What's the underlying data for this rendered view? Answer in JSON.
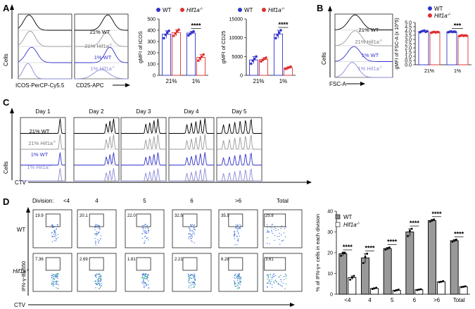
{
  "figure": {
    "panels": [
      "A",
      "B",
      "C",
      "D"
    ],
    "legend_wt": "WT",
    "legend_ko": "Hif1a",
    "legend_ko_sup": "-/-",
    "sample_21wt": "21% WT",
    "sample_21ko": "21% Hif1a",
    "sample_1wt": "1% WT",
    "sample_1ko": "1% Hif1a",
    "cells_label": "Cells",
    "colors": {
      "wt": "#3333cc",
      "ko": "#e03030",
      "ctrl": "#000000",
      "light": "#8a8ad8",
      "gray": "#999999"
    }
  },
  "panelA": {
    "axis1": "ICOS-PerCP-Cy5.5",
    "axis2": "CD25-APC"
  },
  "panelB": {
    "axis": "FSC-A"
  },
  "panelC": {
    "days": [
      "Day 1",
      "Day 2",
      "Day 3",
      "Day 4",
      "Day 5"
    ],
    "xlabel": "CTV"
  },
  "panelD": {
    "division_label": "Division:",
    "divisions": [
      "<4",
      "4",
      "5",
      "6",
      ">6",
      "Total"
    ],
    "row_wt": "WT",
    "row_ko": "Hif1a",
    "wt_pcts": [
      "19.9",
      "20.1",
      "22.0",
      "32.5",
      "35.5",
      "25.8"
    ],
    "ko_pcts": [
      "7.36",
      "2.69",
      "1.81",
      "2.21",
      "6.28",
      "3.61"
    ],
    "ylabel": "IFN-γ-BV650",
    "xlabel": "CTV"
  },
  "chart_data": [
    {
      "type": "bar",
      "id": "icos",
      "title": "",
      "ylabel": "gMFI of ICOS",
      "xlabel": "",
      "categories": [
        "21%",
        "1%"
      ],
      "ylim": [
        0,
        500
      ],
      "yticks": [
        0,
        100,
        200,
        300,
        400,
        500
      ],
      "series": [
        {
          "name": "WT",
          "values": [
            365,
            375
          ],
          "points": [
            [
              330,
              360,
              380,
              395
            ],
            [
              355,
              370,
              380,
              390
            ]
          ]
        },
        {
          "name": "Hif1a-/-",
          "values": [
            380,
            160
          ],
          "points": [
            [
              350,
              370,
              390,
              405
            ],
            [
              130,
              150,
              165,
              185
            ]
          ]
        }
      ],
      "significance": [
        {
          "category": "1%",
          "label": "****"
        }
      ]
    },
    {
      "type": "bar",
      "id": "cd25",
      "title": "",
      "ylabel": "gMFI of CD25",
      "xlabel": "",
      "categories": [
        "21%",
        "1%"
      ],
      "ylim": [
        0,
        15000
      ],
      "yticks": [
        0,
        5000,
        10000,
        15000
      ],
      "series": [
        {
          "name": "WT",
          "values": [
            4100,
            11000
          ],
          "points": [
            [
              3100,
              3900,
              4400,
              5000
            ],
            [
              9900,
              10700,
              11400,
              12000
            ]
          ]
        },
        {
          "name": "Hif1a-/-",
          "values": [
            4200,
            2000
          ],
          "points": [
            [
              3700,
              4100,
              4400,
              4700
            ],
            [
              1700,
              1900,
              2100,
              2300
            ]
          ]
        }
      ],
      "significance": [
        {
          "category": "1%",
          "label": "****"
        }
      ]
    },
    {
      "type": "bar",
      "id": "fsc",
      "title": "",
      "ylabel": "gMFI of FSC-A (x 10^5)",
      "xlabel": "",
      "categories": [
        "21%",
        "1%"
      ],
      "ylim": [
        0,
        5.0
      ],
      "yticks": [
        0.0,
        0.5,
        1.0,
        1.5,
        2.0,
        2.5,
        3.0,
        3.5,
        4.0,
        4.5,
        5.0
      ],
      "series": [
        {
          "name": "WT",
          "values": [
            3.95,
            3.9
          ],
          "points": [
            [
              3.85,
              3.95,
              4.0,
              4.05,
              3.9,
              3.98
            ],
            [
              3.85,
              3.9,
              3.95,
              3.88,
              3.92,
              3.9
            ]
          ]
        },
        {
          "name": "Hif1a-/-",
          "values": [
            3.85,
            3.45
          ],
          "points": [
            [
              3.8,
              3.85,
              3.9,
              3.82,
              3.88,
              3.86
            ],
            [
              3.4,
              3.45,
              3.5,
              3.42,
              3.48,
              3.44
            ]
          ]
        }
      ],
      "significance": [
        {
          "category": "1%",
          "label": "***"
        }
      ]
    },
    {
      "type": "bar",
      "id": "ifng",
      "title": "",
      "ylabel": "% of IFN-γ+ cells in each division",
      "xlabel": "",
      "categories": [
        "<4",
        "4",
        "5",
        "6",
        ">6",
        "Total"
      ],
      "ylim": [
        0,
        40
      ],
      "yticks": [
        0,
        10,
        20,
        30,
        40
      ],
      "series": [
        {
          "name": "WT",
          "values": [
            19.5,
            17.5,
            22.0,
            30.0,
            35.5,
            25.8
          ],
          "points": [
            [
              18.5,
              20.0,
              20.0
            ],
            [
              15.0,
              18.0,
              19.5
            ],
            [
              21.5,
              22.0,
              22.5
            ],
            [
              28.0,
              30.5,
              31.5
            ],
            [
              35.0,
              35.5,
              36.0
            ],
            [
              25.3,
              25.8,
              26.3
            ]
          ]
        },
        {
          "name": "Hif1a-/-",
          "values": [
            8.0,
            2.8,
            1.9,
            2.2,
            6.0,
            3.6
          ],
          "points": [
            [
              7.0,
              8.0,
              8.8
            ],
            [
              2.5,
              2.8,
              3.1
            ],
            [
              1.6,
              1.9,
              2.2
            ],
            [
              2.0,
              2.2,
              2.4
            ],
            [
              5.8,
              6.0,
              6.3
            ],
            [
              3.4,
              3.6,
              3.8
            ]
          ]
        }
      ],
      "significance": [
        {
          "category": "<4",
          "label": "****"
        },
        {
          "category": "4",
          "label": "****"
        },
        {
          "category": "5",
          "label": "****"
        },
        {
          "category": "6",
          "label": "****"
        },
        {
          "category": ">6",
          "label": "****"
        },
        {
          "category": "Total",
          "label": "****"
        }
      ]
    }
  ]
}
